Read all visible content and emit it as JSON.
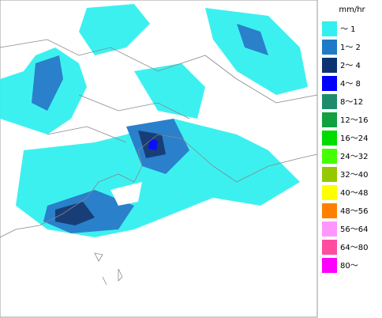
{
  "legend": {
    "title": "mm/hr",
    "items": [
      {
        "label": "〜 1",
        "color": "#33f0f0"
      },
      {
        "label": "1〜 2",
        "color": "#1f7ac8"
      },
      {
        "label": "2〜 4",
        "color": "#0c3470"
      },
      {
        "label": "4〜 8",
        "color": "#0000ff"
      },
      {
        "label": "8〜12",
        "color": "#1e8c6c"
      },
      {
        "label": "12〜16",
        "color": "#10a040"
      },
      {
        "label": "16〜24",
        "color": "#00dc00"
      },
      {
        "label": "24〜32",
        "color": "#44ff00"
      },
      {
        "label": "32〜40",
        "color": "#96c800"
      },
      {
        "label": "40〜48",
        "color": "#ffff00"
      },
      {
        "label": "48〜56",
        "color": "#ff8000"
      },
      {
        "label": "56〜64",
        "color": "#ff96ff"
      },
      {
        "label": "64〜80",
        "color": "#ff4ca0"
      },
      {
        "label": "80〜",
        "color": "#ff00ff"
      }
    ]
  }
}
